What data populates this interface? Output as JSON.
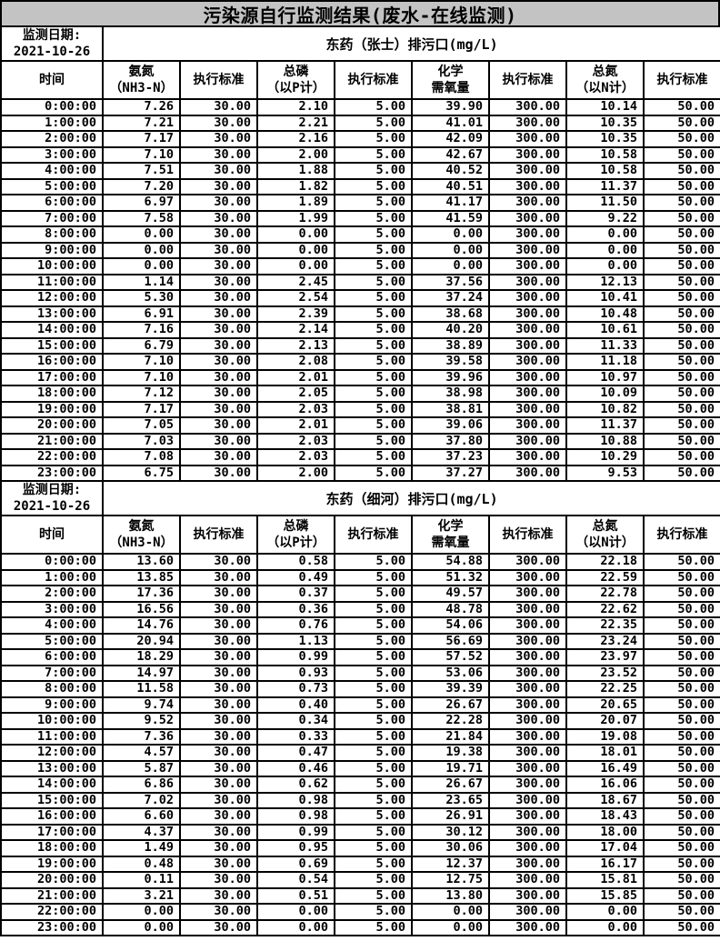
{
  "title": "污染源自行监测结果(废水-在线监测)",
  "colors": {
    "title_bg": "#c3c3c3",
    "border": "#000000",
    "page_bg": "#ffffff"
  },
  "units": "mg/L",
  "columns": {
    "time": "时间",
    "nh3n_line1": "氨氮",
    "nh3n_line2": "（NH3-N）",
    "standard": "执行标准",
    "tp_line1": "总磷",
    "tp_line2": "（以P计）",
    "cod_line1": "化学",
    "cod_line2": "需氧量",
    "tn_line1": "总氮",
    "tn_line2": "（以N计）"
  },
  "tables": [
    {
      "date_label": "监测日期:",
      "date": "2021-10-26",
      "station": "东药（张士）排污口(mg/L)",
      "rows": [
        [
          "0:00:00",
          "7.26",
          "30.00",
          "2.10",
          "5.00",
          "39.90",
          "300.00",
          "10.14",
          "50.00"
        ],
        [
          "1:00:00",
          "7.21",
          "30.00",
          "2.21",
          "5.00",
          "41.01",
          "300.00",
          "10.35",
          "50.00"
        ],
        [
          "2:00:00",
          "7.17",
          "30.00",
          "2.16",
          "5.00",
          "42.09",
          "300.00",
          "10.35",
          "50.00"
        ],
        [
          "3:00:00",
          "7.10",
          "30.00",
          "2.00",
          "5.00",
          "42.67",
          "300.00",
          "10.58",
          "50.00"
        ],
        [
          "4:00:00",
          "7.51",
          "30.00",
          "1.88",
          "5.00",
          "40.52",
          "300.00",
          "10.58",
          "50.00"
        ],
        [
          "5:00:00",
          "7.20",
          "30.00",
          "1.82",
          "5.00",
          "40.51",
          "300.00",
          "11.37",
          "50.00"
        ],
        [
          "6:00:00",
          "6.97",
          "30.00",
          "1.89",
          "5.00",
          "41.17",
          "300.00",
          "11.50",
          "50.00"
        ],
        [
          "7:00:00",
          "7.58",
          "30.00",
          "1.99",
          "5.00",
          "41.59",
          "300.00",
          "9.22",
          "50.00"
        ],
        [
          "8:00:00",
          "0.00",
          "30.00",
          "0.00",
          "5.00",
          "0.00",
          "300.00",
          "0.00",
          "50.00"
        ],
        [
          "9:00:00",
          "0.00",
          "30.00",
          "0.00",
          "5.00",
          "0.00",
          "300.00",
          "0.00",
          "50.00"
        ],
        [
          "10:00:00",
          "0.00",
          "30.00",
          "0.00",
          "5.00",
          "0.00",
          "300.00",
          "0.00",
          "50.00"
        ],
        [
          "11:00:00",
          "1.14",
          "30.00",
          "2.45",
          "5.00",
          "37.56",
          "300.00",
          "12.13",
          "50.00"
        ],
        [
          "12:00:00",
          "5.30",
          "30.00",
          "2.54",
          "5.00",
          "37.24",
          "300.00",
          "10.41",
          "50.00"
        ],
        [
          "13:00:00",
          "6.91",
          "30.00",
          "2.39",
          "5.00",
          "38.68",
          "300.00",
          "10.48",
          "50.00"
        ],
        [
          "14:00:00",
          "7.16",
          "30.00",
          "2.14",
          "5.00",
          "40.20",
          "300.00",
          "10.61",
          "50.00"
        ],
        [
          "15:00:00",
          "6.79",
          "30.00",
          "2.13",
          "5.00",
          "38.89",
          "300.00",
          "11.33",
          "50.00"
        ],
        [
          "16:00:00",
          "7.10",
          "30.00",
          "2.08",
          "5.00",
          "39.58",
          "300.00",
          "11.18",
          "50.00"
        ],
        [
          "17:00:00",
          "7.10",
          "30.00",
          "2.01",
          "5.00",
          "39.96",
          "300.00",
          "10.97",
          "50.00"
        ],
        [
          "18:00:00",
          "7.12",
          "30.00",
          "2.05",
          "5.00",
          "38.98",
          "300.00",
          "10.09",
          "50.00"
        ],
        [
          "19:00:00",
          "7.17",
          "30.00",
          "2.03",
          "5.00",
          "38.81",
          "300.00",
          "10.82",
          "50.00"
        ],
        [
          "20:00:00",
          "7.05",
          "30.00",
          "2.01",
          "5.00",
          "39.06",
          "300.00",
          "11.37",
          "50.00"
        ],
        [
          "21:00:00",
          "7.03",
          "30.00",
          "2.03",
          "5.00",
          "37.80",
          "300.00",
          "10.88",
          "50.00"
        ],
        [
          "22:00:00",
          "7.08",
          "30.00",
          "2.03",
          "5.00",
          "37.23",
          "300.00",
          "10.29",
          "50.00"
        ],
        [
          "23:00:00",
          "6.75",
          "30.00",
          "2.00",
          "5.00",
          "37.27",
          "300.00",
          "9.53",
          "50.00"
        ]
      ]
    },
    {
      "date_label": "监测日期:",
      "date": "2021-10-26",
      "station": "东药（细河）排污口(mg/L)",
      "rows": [
        [
          "0:00:00",
          "13.60",
          "30.00",
          "0.58",
          "5.00",
          "54.88",
          "300.00",
          "22.18",
          "50.00"
        ],
        [
          "1:00:00",
          "13.85",
          "30.00",
          "0.49",
          "5.00",
          "51.32",
          "300.00",
          "22.59",
          "50.00"
        ],
        [
          "2:00:00",
          "17.36",
          "30.00",
          "0.37",
          "5.00",
          "49.57",
          "300.00",
          "22.78",
          "50.00"
        ],
        [
          "3:00:00",
          "16.56",
          "30.00",
          "0.36",
          "5.00",
          "48.78",
          "300.00",
          "22.62",
          "50.00"
        ],
        [
          "4:00:00",
          "14.76",
          "30.00",
          "0.76",
          "5.00",
          "54.06",
          "300.00",
          "22.35",
          "50.00"
        ],
        [
          "5:00:00",
          "20.94",
          "30.00",
          "1.13",
          "5.00",
          "56.69",
          "300.00",
          "23.24",
          "50.00"
        ],
        [
          "6:00:00",
          "18.29",
          "30.00",
          "0.99",
          "5.00",
          "57.52",
          "300.00",
          "23.97",
          "50.00"
        ],
        [
          "7:00:00",
          "14.97",
          "30.00",
          "0.93",
          "5.00",
          "53.06",
          "300.00",
          "23.52",
          "50.00"
        ],
        [
          "8:00:00",
          "11.58",
          "30.00",
          "0.73",
          "5.00",
          "39.39",
          "300.00",
          "22.25",
          "50.00"
        ],
        [
          "9:00:00",
          "9.74",
          "30.00",
          "0.40",
          "5.00",
          "26.67",
          "300.00",
          "20.65",
          "50.00"
        ],
        [
          "10:00:00",
          "9.52",
          "30.00",
          "0.34",
          "5.00",
          "22.28",
          "300.00",
          "20.07",
          "50.00"
        ],
        [
          "11:00:00",
          "7.36",
          "30.00",
          "0.33",
          "5.00",
          "21.84",
          "300.00",
          "19.08",
          "50.00"
        ],
        [
          "12:00:00",
          "4.57",
          "30.00",
          "0.47",
          "5.00",
          "19.38",
          "300.00",
          "18.01",
          "50.00"
        ],
        [
          "13:00:00",
          "5.87",
          "30.00",
          "0.46",
          "5.00",
          "19.71",
          "300.00",
          "16.49",
          "50.00"
        ],
        [
          "14:00:00",
          "6.86",
          "30.00",
          "0.62",
          "5.00",
          "26.67",
          "300.00",
          "16.06",
          "50.00"
        ],
        [
          "15:00:00",
          "7.02",
          "30.00",
          "0.98",
          "5.00",
          "23.65",
          "300.00",
          "18.67",
          "50.00"
        ],
        [
          "16:00:00",
          "6.60",
          "30.00",
          "0.98",
          "5.00",
          "26.91",
          "300.00",
          "18.43",
          "50.00"
        ],
        [
          "17:00:00",
          "4.37",
          "30.00",
          "0.99",
          "5.00",
          "30.12",
          "300.00",
          "18.00",
          "50.00"
        ],
        [
          "18:00:00",
          "1.49",
          "30.00",
          "0.95",
          "5.00",
          "30.06",
          "300.00",
          "17.04",
          "50.00"
        ],
        [
          "19:00:00",
          "0.48",
          "30.00",
          "0.69",
          "5.00",
          "12.37",
          "300.00",
          "16.17",
          "50.00"
        ],
        [
          "20:00:00",
          "0.11",
          "30.00",
          "0.54",
          "5.00",
          "12.75",
          "300.00",
          "15.81",
          "50.00"
        ],
        [
          "21:00:00",
          "3.21",
          "30.00",
          "0.51",
          "5.00",
          "13.80",
          "300.00",
          "15.85",
          "50.00"
        ],
        [
          "22:00:00",
          "0.00",
          "30.00",
          "0.00",
          "5.00",
          "0.00",
          "300.00",
          "0.00",
          "50.00"
        ],
        [
          "23:00:00",
          "0.00",
          "30.00",
          "0.00",
          "5.00",
          "0.00",
          "300.00",
          "0.00",
          "50.00"
        ]
      ]
    }
  ]
}
